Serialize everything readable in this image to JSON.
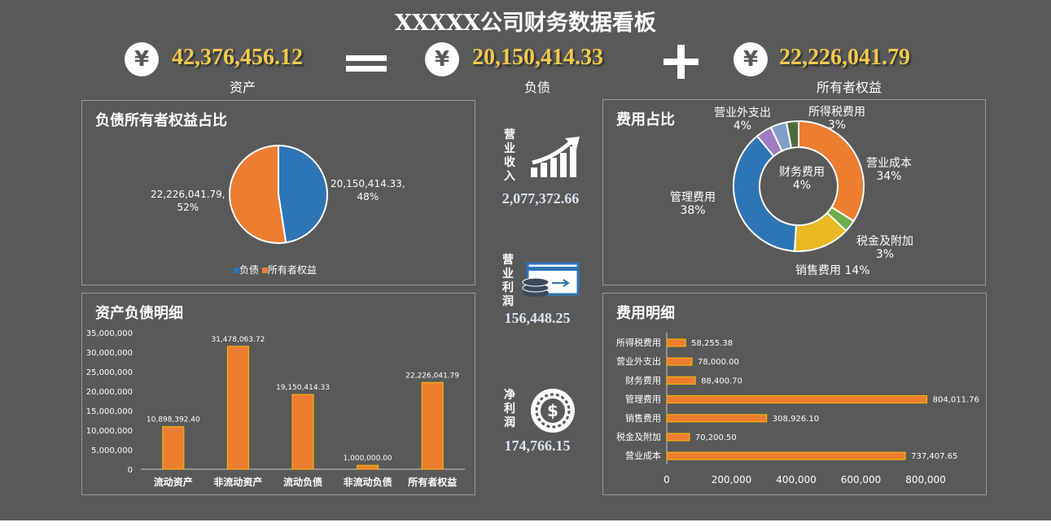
{
  "header": {
    "title": "XXXXX公司财务数据看板",
    "assets": {
      "value": "42,376,456.12",
      "label": "资产"
    },
    "liabilities": {
      "value": "20,150,414.33",
      "label": "负债"
    },
    "equity": {
      "value": "22,226,041.79",
      "label": "所有者权益"
    },
    "currency_symbol": "¥"
  },
  "kpis": {
    "revenue": {
      "label": "营业收入",
      "value": "2,077,372.66",
      "icon": "growth-chart-icon"
    },
    "operating_profit": {
      "label": "营业利润",
      "value": "156,448.25",
      "icon": "money-card-icon"
    },
    "net_profit": {
      "label": "净利润",
      "value": "174,766.15",
      "icon": "dollar-coin-icon"
    }
  },
  "colors": {
    "background": "#595959",
    "orange": "#ed7d31",
    "blue": "#2e75b6",
    "gold": "#f2c94c"
  },
  "chart_data": [
    {
      "type": "pie",
      "title": "负债所有者权益占比",
      "slices": [
        {
          "name": "负债",
          "value": 20150414.33,
          "percent": 48,
          "label": "20,150,414.33,",
          "pct_label": "48%",
          "color": "#2e75b6"
        },
        {
          "name": "所有者权益",
          "value": 22226041.79,
          "percent": 52,
          "label": "22,226,041.79,",
          "pct_label": "52%",
          "color": "#ed7d31"
        }
      ],
      "legend": [
        "负债",
        "所有者权益"
      ],
      "legend_position": "bottom"
    },
    {
      "type": "bar",
      "title": "资产负债明细",
      "categories": [
        "流动资产",
        "非流动资产",
        "流动负债",
        "非流动负债",
        "所有者权益"
      ],
      "values": [
        10898392.4,
        31478063.72,
        19150414.33,
        1000000.0,
        22226041.79
      ],
      "value_labels": [
        "10,898,392.40",
        "31,478,063.72",
        "19,150,414.33",
        "1,000,000.00",
        "22,226,041.79"
      ],
      "ylim": [
        0,
        35000000
      ],
      "yticks": [
        "0",
        "5,000,000",
        "10,000,000",
        "15,000,000",
        "20,000,000",
        "25,000,000",
        "30,000,000",
        "35,000,000"
      ]
    },
    {
      "type": "pie",
      "subtype": "donut",
      "title": "费用占比",
      "slices": [
        {
          "name": "营业成本",
          "percent": 34,
          "pct_label": "34%",
          "color": "#ed7d31"
        },
        {
          "name": "税金及附加",
          "percent": 3,
          "pct_label": "3%",
          "color": "#70ad47"
        },
        {
          "name": "销售费用",
          "percent": 14,
          "pct_label": "14%",
          "color": "#e8b923"
        },
        {
          "name": "管理费用",
          "percent": 38,
          "pct_label": "38%",
          "color": "#2e75b6"
        },
        {
          "name": "财务费用",
          "percent": 4,
          "pct_label": "4%",
          "color": "#9e7cc1"
        },
        {
          "name": "营业外支出",
          "percent": 4,
          "pct_label": "4%",
          "color": "#7f9fc7"
        },
        {
          "name": "所得税费用",
          "percent": 3,
          "pct_label": "3%",
          "color": "#4e6b3e"
        }
      ]
    },
    {
      "type": "bar",
      "orientation": "horizontal",
      "title": "费用明细",
      "categories": [
        "所得税费用",
        "营业外支出",
        "财务费用",
        "管理费用",
        "销售费用",
        "税金及附加",
        "营业成本"
      ],
      "values": [
        58255.38,
        78000.0,
        88400.7,
        804011.76,
        308926.1,
        70200.5,
        737407.65
      ],
      "value_labels": [
        "58,255.38",
        "78,000.00",
        "88,400.70",
        "804,011.76",
        "308,926.10",
        "70,200.50",
        "737,407.65"
      ],
      "xlim": [
        0,
        800000
      ],
      "xticks": [
        "0",
        "200,000",
        "400,000",
        "600,000",
        "800,000"
      ]
    }
  ]
}
